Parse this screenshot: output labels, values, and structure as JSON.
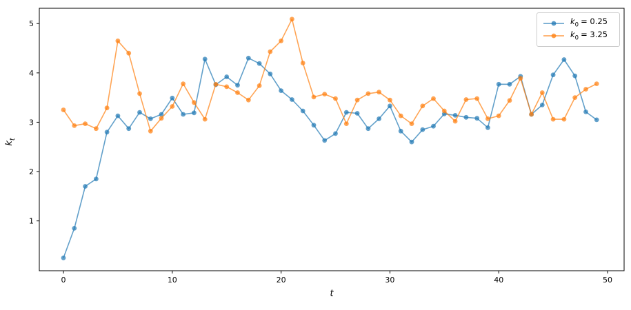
{
  "chart_data": {
    "type": "line",
    "title": "",
    "xlabel": "t",
    "ylabel": "k_t",
    "x": [
      0,
      1,
      2,
      3,
      4,
      5,
      6,
      7,
      8,
      9,
      10,
      11,
      12,
      13,
      14,
      15,
      16,
      17,
      18,
      19,
      20,
      21,
      22,
      23,
      24,
      25,
      26,
      27,
      28,
      29,
      30,
      31,
      32,
      33,
      34,
      35,
      36,
      37,
      38,
      39,
      40,
      41,
      42,
      43,
      44,
      45,
      46,
      47,
      48,
      49
    ],
    "series": [
      {
        "name": "k0 = 0.25",
        "color": "#1f77b4",
        "values": [
          0.25,
          0.85,
          1.7,
          1.85,
          2.8,
          3.13,
          2.87,
          3.2,
          3.07,
          3.16,
          3.49,
          3.16,
          3.19,
          4.28,
          3.76,
          3.92,
          3.75,
          4.3,
          4.19,
          3.98,
          3.64,
          3.46,
          3.23,
          2.94,
          2.63,
          2.77,
          3.2,
          3.18,
          2.87,
          3.07,
          3.33,
          2.82,
          2.6,
          2.85,
          2.92,
          3.17,
          3.14,
          3.1,
          3.08,
          2.89,
          3.77,
          3.77,
          3.93,
          3.16,
          3.35,
          3.96,
          4.27,
          3.94,
          3.21,
          3.05
        ]
      },
      {
        "name": "k0 = 3.25",
        "color": "#ff7f0e",
        "values": [
          3.25,
          2.93,
          2.97,
          2.87,
          3.29,
          4.65,
          4.4,
          3.58,
          2.82,
          3.08,
          3.32,
          3.78,
          3.4,
          3.06,
          3.77,
          3.72,
          3.6,
          3.45,
          3.74,
          4.43,
          4.65,
          5.09,
          4.2,
          3.51,
          3.57,
          3.48,
          2.97,
          3.45,
          3.58,
          3.61,
          3.45,
          3.13,
          2.97,
          3.33,
          3.48,
          3.23,
          3.02,
          3.46,
          3.48,
          3.07,
          3.13,
          3.44,
          3.89,
          3.16,
          3.6,
          3.06,
          3.06,
          3.5,
          3.67,
          3.78
        ]
      }
    ],
    "alpha": 0.7,
    "xlim": [
      -2.22,
      51.52
    ],
    "ylim": [
      -0.01,
      5.31
    ],
    "xticks": [
      0,
      10,
      20,
      30,
      40,
      50
    ],
    "yticks": [
      1,
      2,
      3,
      4,
      5
    ],
    "grid": false,
    "legend_position": "upper right"
  },
  "axes": {
    "xlabel": {
      "var": "t"
    },
    "ylabel": {
      "var": "k",
      "sub": "t"
    },
    "xtick_labels": [
      "0",
      "10",
      "20",
      "30",
      "40",
      "50"
    ],
    "ytick_labels": [
      "1",
      "2",
      "3",
      "4",
      "5"
    ]
  },
  "legend": {
    "items": [
      {
        "var": "k",
        "sub": "0",
        "eq": "= 0.25"
      },
      {
        "var": "k",
        "sub": "0",
        "eq": "= 3.25"
      }
    ]
  }
}
